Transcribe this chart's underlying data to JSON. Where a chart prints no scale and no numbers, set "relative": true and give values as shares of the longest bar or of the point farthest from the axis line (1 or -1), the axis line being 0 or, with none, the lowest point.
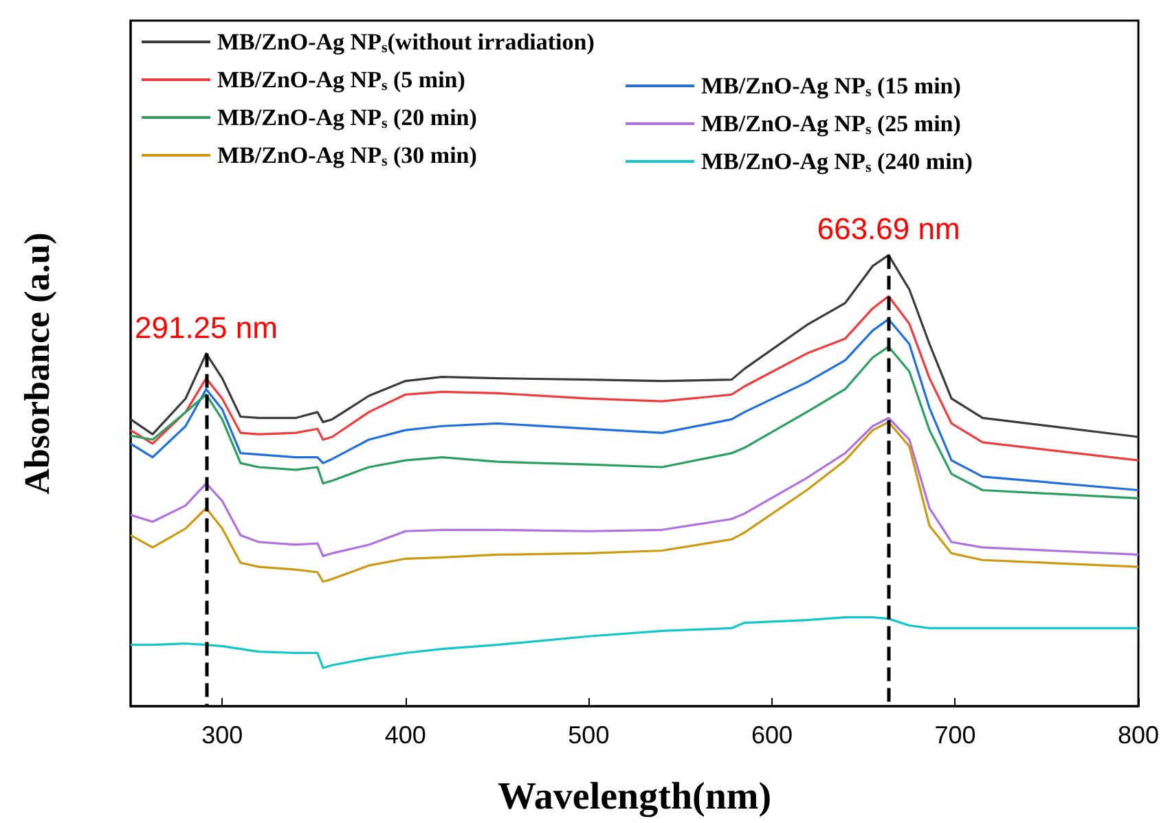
{
  "chart_data": {
    "type": "line",
    "xlabel": "Wavelength(nm)",
    "ylabel": "Absorbance (a.u)",
    "relative": true,
    "xlim": [
      250,
      800
    ],
    "xticks": [
      300,
      400,
      500,
      600,
      700,
      800
    ],
    "legend": "top left",
    "x": [
      250,
      262,
      280,
      291.25,
      300,
      310,
      320,
      340,
      352,
      355,
      360,
      380,
      400,
      420,
      450,
      500,
      540,
      578,
      585,
      619,
      640,
      655,
      663.69,
      675,
      686,
      698,
      715,
      800
    ],
    "series": [
      {
        "name": "MB/ZnO-Ag NP$_{s}$(without irradiation)",
        "color": "#3a3a3a",
        "values": [
          0.636,
          0.603,
          0.682,
          0.782,
          0.727,
          0.642,
          0.639,
          0.639,
          0.652,
          0.63,
          0.636,
          0.688,
          0.721,
          0.73,
          0.727,
          0.724,
          0.721,
          0.724,
          0.748,
          0.845,
          0.894,
          0.976,
          1.0,
          0.924,
          0.803,
          0.682,
          0.639,
          0.597
        ]
      },
      {
        "name": "MB/ZnO-Ag NP$_{s}$ (5 min)",
        "color": "#f03c3c",
        "values": [
          0.612,
          0.582,
          0.652,
          0.727,
          0.682,
          0.606,
          0.603,
          0.606,
          0.615,
          0.591,
          0.597,
          0.652,
          0.691,
          0.697,
          0.694,
          0.682,
          0.676,
          0.691,
          0.709,
          0.782,
          0.815,
          0.882,
          0.909,
          0.848,
          0.727,
          0.627,
          0.585,
          0.545
        ]
      },
      {
        "name": "MB/ZnO-Ag NP$_{s}$ (15 min)",
        "color": "#1f6fe0",
        "values": [
          0.582,
          0.552,
          0.621,
          0.703,
          0.658,
          0.561,
          0.558,
          0.552,
          0.552,
          0.539,
          0.548,
          0.591,
          0.612,
          0.621,
          0.627,
          0.615,
          0.606,
          0.636,
          0.652,
          0.718,
          0.767,
          0.833,
          0.858,
          0.803,
          0.661,
          0.545,
          0.509,
          0.479
        ]
      },
      {
        "name": "MB/ZnO-Ag NP$_{s}$ (20 min)",
        "color": "#2aa060",
        "values": [
          0.6,
          0.591,
          0.652,
          0.691,
          0.636,
          0.539,
          0.53,
          0.524,
          0.53,
          0.494,
          0.5,
          0.53,
          0.545,
          0.552,
          0.542,
          0.536,
          0.53,
          0.561,
          0.573,
          0.652,
          0.703,
          0.773,
          0.797,
          0.742,
          0.612,
          0.515,
          0.479,
          0.461
        ]
      },
      {
        "name": "MB/ZnO-Ag NP$_{s}$ (25 min)",
        "color": "#b070e0",
        "values": [
          0.424,
          0.409,
          0.445,
          0.494,
          0.455,
          0.379,
          0.364,
          0.358,
          0.361,
          0.333,
          0.339,
          0.358,
          0.388,
          0.391,
          0.391,
          0.388,
          0.391,
          0.415,
          0.427,
          0.506,
          0.561,
          0.621,
          0.639,
          0.591,
          0.439,
          0.364,
          0.352,
          0.336
        ]
      },
      {
        "name": "MB/ZnO-Ag NP$_{s}$ (30 min)",
        "color": "#cc9910",
        "values": [
          0.379,
          0.352,
          0.394,
          0.439,
          0.394,
          0.318,
          0.309,
          0.303,
          0.297,
          0.276,
          0.282,
          0.312,
          0.327,
          0.33,
          0.336,
          0.339,
          0.345,
          0.37,
          0.385,
          0.479,
          0.545,
          0.612,
          0.63,
          0.576,
          0.4,
          0.339,
          0.324,
          0.309
        ]
      },
      {
        "name": "MB/ZnO-Ag NP$_{s}$ (240 min)",
        "color": "#10c8c8",
        "values": [
          0.136,
          0.136,
          0.139,
          0.136,
          0.133,
          0.127,
          0.121,
          0.118,
          0.118,
          0.085,
          0.091,
          0.106,
          0.118,
          0.127,
          0.136,
          0.155,
          0.167,
          0.173,
          0.185,
          0.191,
          0.197,
          0.197,
          0.194,
          0.179,
          0.173,
          0.173,
          0.173,
          0.173
        ]
      }
    ],
    "ref_lines": [
      {
        "axis": "x",
        "value": 291.25,
        "label": "291.25 nm",
        "color": "#000000",
        "line_style": "dashed"
      },
      {
        "axis": "x",
        "value": 663.69,
        "label": "663.69 nm",
        "color": "#000000",
        "line_style": "dashed"
      }
    ]
  }
}
